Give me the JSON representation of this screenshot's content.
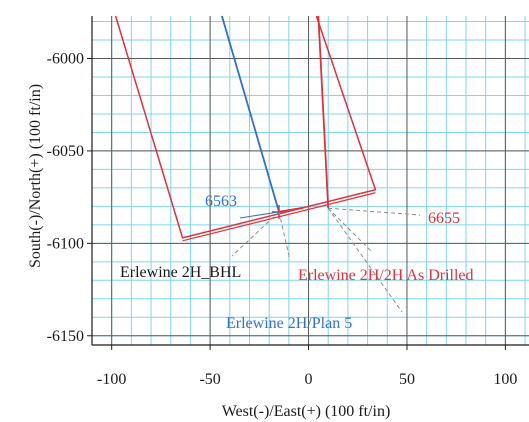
{
  "chart_data": {
    "type": "line",
    "xlabel": "West(-)/East(+) (100 ft/in)",
    "ylabel": "South(-)/North(+) (100 ft/in)",
    "xlim": [
      -110,
      112
    ],
    "ylim": [
      -6155,
      -5977
    ],
    "x_ticks": [
      -100,
      -50,
      0,
      50,
      100
    ],
    "x_tick_labels": [
      "-100",
      "-50",
      "0",
      "50",
      "100"
    ],
    "y_ticks": [
      -6000,
      -6050,
      -6100,
      -6150
    ],
    "y_tick_labels": [
      "-6000",
      "-6050",
      "-6100",
      "-6150"
    ],
    "grid": true,
    "colors": {
      "grid_major": "#5a5a5a",
      "grid_minor": "#7fd4ee",
      "plan": "#2f6fd0",
      "as_drilled": "#e0303a",
      "leader": "#8a8a8a",
      "text_dark": "#1a1a1a"
    },
    "series": [
      {
        "name": "Erlewine 2H/Plan 5",
        "color": "#2f6fd0",
        "x": [
          -44,
          -15
        ],
        "y": [
          -5977,
          -6083
        ]
      },
      {
        "name": "Erlewine 2H/2H As Drilled",
        "color": "#e0303a",
        "x": [
          5,
          10
        ],
        "y": [
          -5977,
          -6081
        ]
      }
    ],
    "outlines": [
      {
        "color": "#e0303a",
        "x": [
          -98,
          -64,
          34,
          4
        ],
        "y": [
          -5977,
          -6097,
          -6071,
          -5977
        ]
      }
    ],
    "annotations": [
      {
        "text": "6563",
        "x": -17,
        "y": -6083,
        "color": "#2f6fd0"
      },
      {
        "text": "6655",
        "x": 10,
        "y": -6081,
        "color": "#e0303a"
      },
      {
        "text": "Erlewine 2H_BHL",
        "x": -15,
        "y": -6083,
        "color": "#1a1a1a"
      },
      {
        "text": "Erlewine 2H/2H As Drilled",
        "x": 10,
        "y": -6081,
        "color": "#e0303a"
      },
      {
        "text": "Erlewine 2H/Plan 5",
        "x": -15,
        "y": -6083,
        "color": "#2f6fd0"
      }
    ]
  }
}
